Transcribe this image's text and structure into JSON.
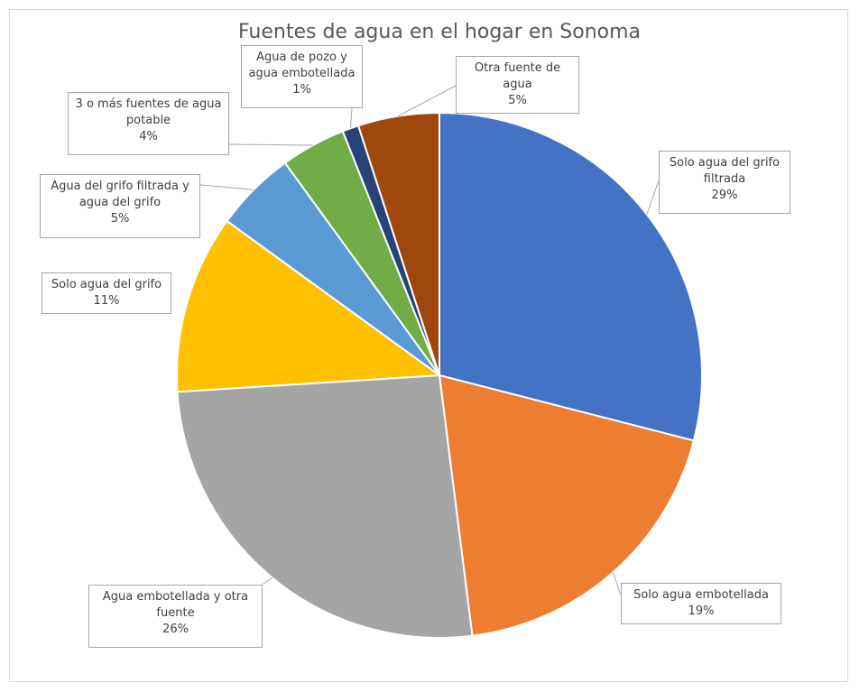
{
  "chart_data": {
    "type": "pie",
    "title": "Fuentes de agua en el hogar en Sonoma",
    "categories": [
      "Solo agua del grifo filtrada",
      "Solo agua embotellada",
      "Agua embotellada y otra fuente",
      "Solo agua del grifo",
      "Agua del grifo filtrada y agua del grifo",
      "3 o más fuentes de agua potable",
      "Agua de pozo y agua embotellada",
      "Otra fuente de agua"
    ],
    "values": [
      29,
      19,
      26,
      11,
      5,
      4,
      1,
      5
    ],
    "value_labels": [
      "29%",
      "19%",
      "26%",
      "11%",
      "5%",
      "4%",
      "1%",
      "5%"
    ],
    "colors": [
      "#4472c4",
      "#ed7d31",
      "#a5a5a5",
      "#ffc000",
      "#5b9bd5",
      "#70ad47",
      "#264478",
      "#9e480e"
    ]
  }
}
